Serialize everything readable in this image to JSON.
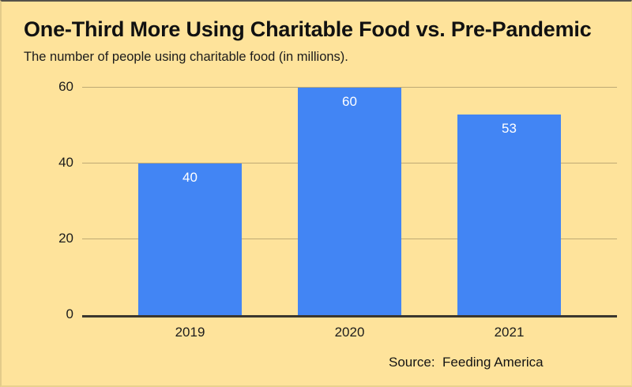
{
  "header": {
    "title": "One-Third More Using Charitable Food vs. Pre-Pandemic",
    "subtitle": "The number of people using charitable food (in millions)."
  },
  "footer": {
    "source": "Source:  Feeding America"
  },
  "colors": {
    "background": "#fee39b",
    "bar": "#4285f4",
    "bar_label": "#ffffff",
    "gridline": "rgba(0,0,0,0.25)",
    "axis_line": "#3a372e",
    "text": "#1b1b1b"
  },
  "chart_data": {
    "type": "bar",
    "categories": [
      "2019",
      "2020",
      "2021"
    ],
    "values": [
      40,
      60,
      53
    ],
    "bar_labels": [
      "40",
      "60",
      "53"
    ],
    "title": "One-Third More Using Charitable Food vs. Pre-Pandemic",
    "subtitle": "The number of people using charitable food (in millions).",
    "xlabel": "",
    "ylabel": "",
    "ylim": [
      0,
      60
    ],
    "yticks": [
      0,
      20,
      40,
      60
    ],
    "grid": true,
    "legend": false,
    "source": "Source: Feeding America"
  }
}
